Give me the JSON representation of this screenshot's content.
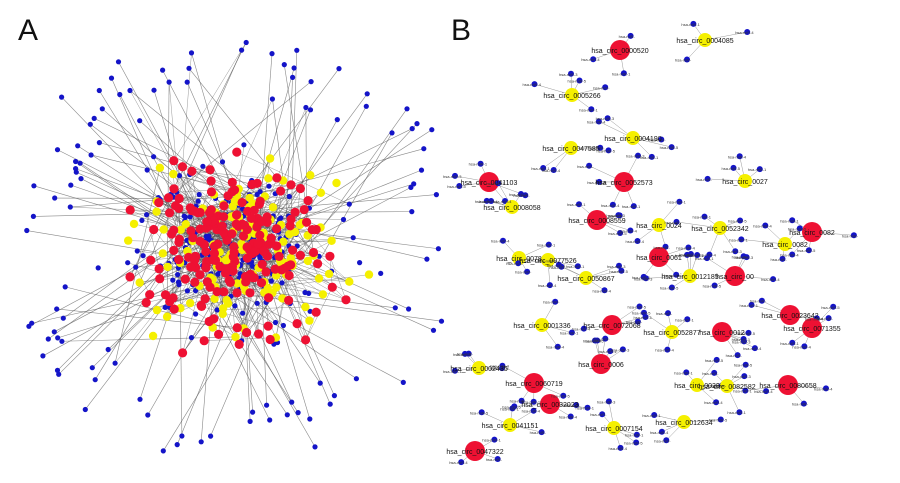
{
  "panels": [
    {
      "label": "A"
    },
    {
      "label": "B"
    }
  ],
  "colors": {
    "mirna_node": "#1414c8",
    "circrna_node": "#f5f000",
    "hub_node": "#ee1133",
    "edge": "#555555"
  },
  "network_b": {
    "circrnas": [
      {
        "id": "hsa_circ_0000520",
        "color": "red"
      },
      {
        "id": "hsa_circ_0004085",
        "color": "yellow"
      },
      {
        "id": "hsa_circ_0005266",
        "color": "yellow"
      },
      {
        "id": "hsa_circ_0004190",
        "color": "yellow"
      },
      {
        "id": "hsa_circ_0047585",
        "color": "yellow"
      },
      {
        "id": "hsa_circ_0041103",
        "color": "red"
      },
      {
        "id": "hsa_circ_0052573",
        "color": "red"
      },
      {
        "id": "hsa_circ_0027",
        "color": "yellow"
      },
      {
        "id": "hsa_circ_0008058",
        "color": "yellow"
      },
      {
        "id": "hsa_circ_0008559",
        "color": "red"
      },
      {
        "id": "hsa_circ_0024",
        "color": "yellow"
      },
      {
        "id": "hsa_circ_0052342",
        "color": "yellow"
      },
      {
        "id": "hsa_circ_0082",
        "color": "red"
      },
      {
        "id": "hsa_circ_0082",
        "color": "yellow"
      },
      {
        "id": "hsa_circ_0078",
        "color": "yellow"
      },
      {
        "id": "hsa_circ_0077526",
        "color": "yellow"
      },
      {
        "id": "hsa_circ_0050867",
        "color": "yellow"
      },
      {
        "id": "hsa_circ_0061",
        "color": "red"
      },
      {
        "id": "hsa_circ_0012185",
        "color": "yellow"
      },
      {
        "id": "hsa_circ_00",
        "color": "red"
      },
      {
        "id": "hsa_circ_0023642",
        "color": "red"
      },
      {
        "id": "hsa_circ_0001336",
        "color": "yellow"
      },
      {
        "id": "hsa_circ_0072068",
        "color": "red"
      },
      {
        "id": "hsa_circ_0052877",
        "color": "yellow"
      },
      {
        "id": "hsa_circ_0012",
        "color": "red"
      },
      {
        "id": "hsa_circ_0071355",
        "color": "red"
      },
      {
        "id": "hsa_circ_0002435",
        "color": "yellow"
      },
      {
        "id": "hsa_circ_0006",
        "color": "red"
      },
      {
        "id": "hsa_circ_0060719",
        "color": "red"
      },
      {
        "id": "hsa_circ_0028",
        "color": "yellow"
      },
      {
        "id": "hsa_circ_0082582",
        "color": "yellow"
      },
      {
        "id": "hsa_circ_0080658",
        "color": "red"
      },
      {
        "id": "hsa_circ_0032023",
        "color": "red"
      },
      {
        "id": "hsa_circ_0041151",
        "color": "yellow"
      },
      {
        "id": "hsa_circ_0007154",
        "color": "yellow"
      },
      {
        "id": "hsa_circ_0012634",
        "color": "yellow"
      },
      {
        "id": "hsa_circ_0047322",
        "color": "red"
      }
    ]
  }
}
